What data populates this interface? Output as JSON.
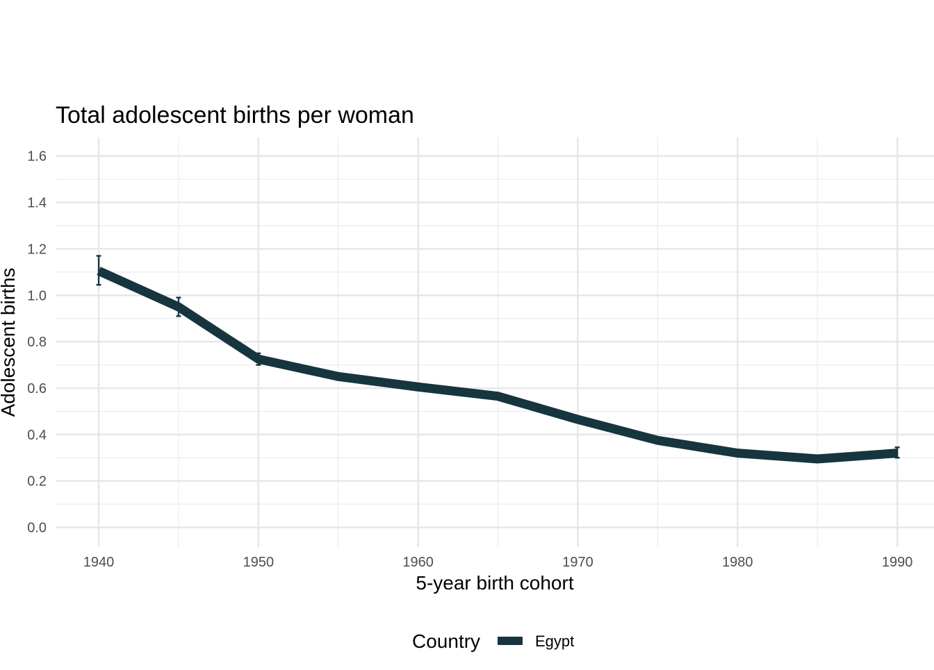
{
  "chart_data": {
    "type": "line",
    "title": "Total adolescent births per woman",
    "xlabel": "5-year birth cohort",
    "ylabel": "Adolescent births",
    "xlim": [
      1937.3,
      1992.3
    ],
    "ylim": [
      -0.085,
      1.68
    ],
    "x_ticks": [
      1940,
      1950,
      1960,
      1970,
      1980,
      1990
    ],
    "y_ticks": [
      0.0,
      0.2,
      0.4,
      0.6,
      0.8,
      1.0,
      1.2,
      1.4,
      1.6
    ],
    "x_tick_labels": [
      "1940",
      "1950",
      "1960",
      "1970",
      "1980",
      "1990"
    ],
    "y_tick_labels": [
      "0.0",
      "0.2",
      "0.4",
      "0.6",
      "0.8",
      "1.0",
      "1.2",
      "1.4",
      "1.6"
    ],
    "grid": true,
    "legend": {
      "position": "bottom",
      "title": "Country"
    },
    "series": [
      {
        "name": "Egypt",
        "color": "#17353f",
        "x": [
          1940,
          1945,
          1950,
          1955,
          1960,
          1965,
          1970,
          1975,
          1980,
          1985,
          1990
        ],
        "y": [
          1.105,
          0.95,
          0.725,
          0.65,
          0.605,
          0.565,
          0.465,
          0.375,
          0.32,
          0.295,
          0.32
        ],
        "y_low": [
          1.045,
          0.91,
          0.7,
          0.635,
          0.59,
          0.555,
          0.455,
          0.365,
          0.312,
          0.285,
          0.3
        ],
        "y_high": [
          1.17,
          0.99,
          0.75,
          0.665,
          0.62,
          0.575,
          0.475,
          0.385,
          0.328,
          0.305,
          0.345
        ]
      }
    ]
  }
}
